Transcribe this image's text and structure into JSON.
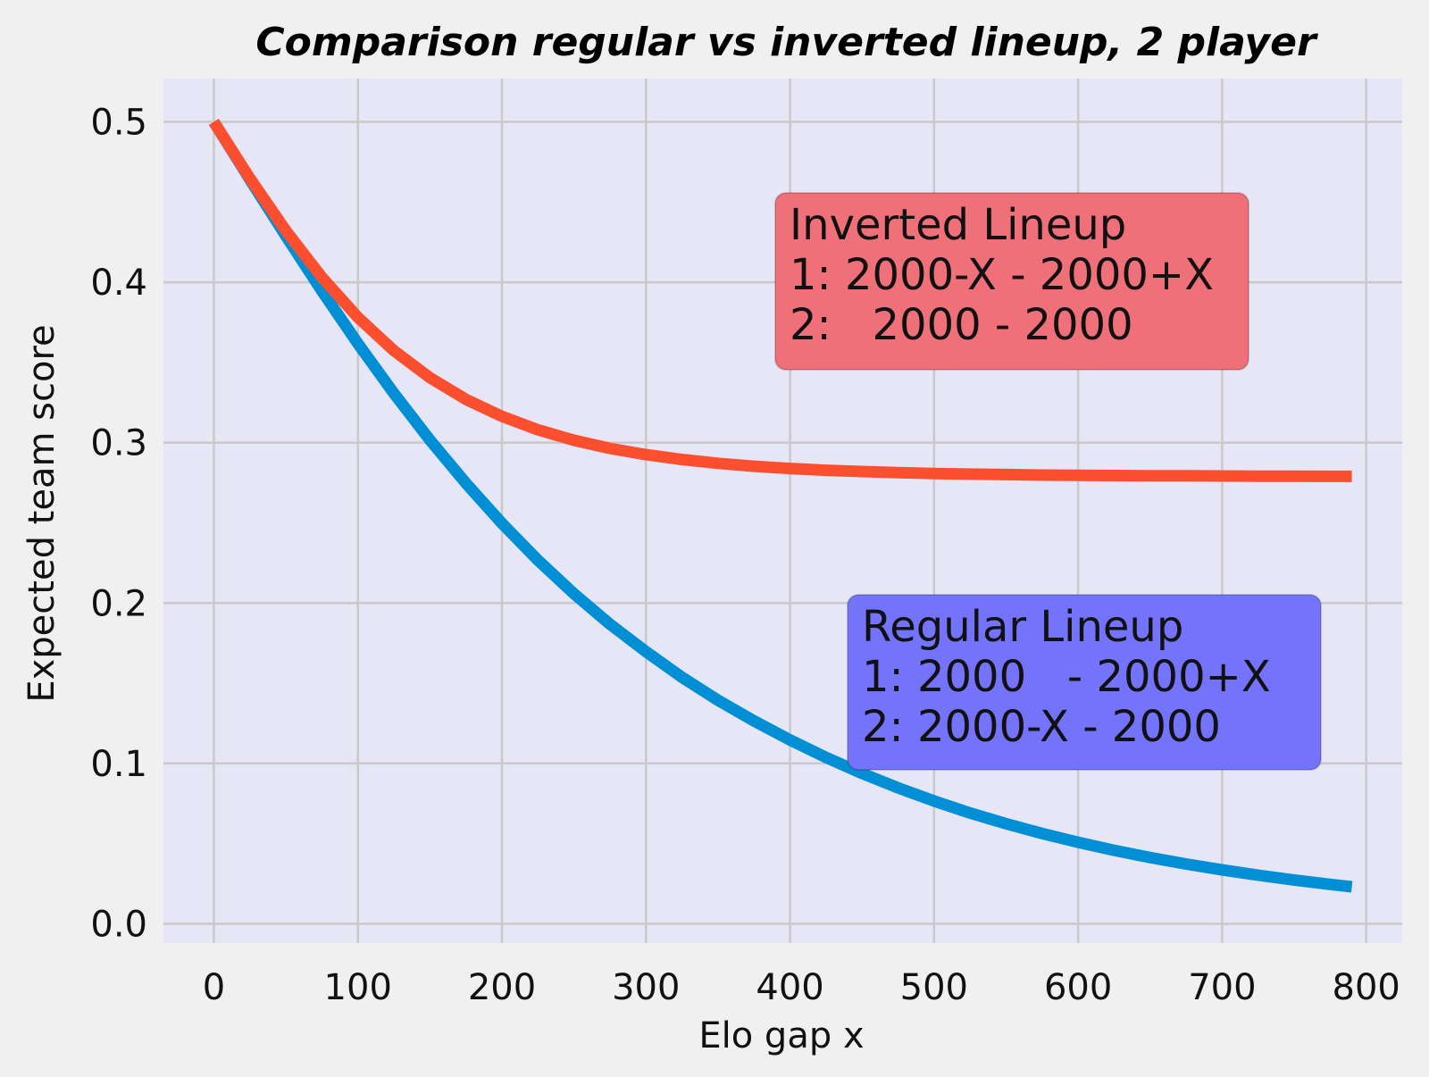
{
  "chart_data": {
    "type": "line",
    "title": "Comparison regular vs inverted lineup, 2 player",
    "xlabel": "Elo gap x",
    "ylabel": "Expected team score",
    "xlim": [
      -35,
      825
    ],
    "ylim": [
      -0.012,
      0.527
    ],
    "xticks": [
      0,
      100,
      200,
      300,
      400,
      500,
      600,
      700,
      800
    ],
    "yticks": [
      0.0,
      0.1,
      0.2,
      0.3,
      0.4,
      0.5
    ],
    "xtick_labels": [
      "0",
      "100",
      "200",
      "300",
      "400",
      "500",
      "600",
      "700",
      "800"
    ],
    "ytick_labels": [
      "0.0",
      "0.1",
      "0.2",
      "0.3",
      "0.4",
      "0.5"
    ],
    "grid": true,
    "background_color": "#e6e6f7",
    "grid_color": "#c9c9c9",
    "x": [
      0,
      25,
      50,
      75,
      100,
      125,
      150,
      175,
      200,
      225,
      250,
      275,
      300,
      325,
      350,
      375,
      400,
      425,
      450,
      475,
      500,
      525,
      550,
      575,
      600,
      625,
      650,
      675,
      700,
      725,
      750,
      775,
      790
    ],
    "series": [
      {
        "color": "#008fd5",
        "values": [
          0.5,
          0.4641,
          0.4289,
          0.3946,
          0.3618,
          0.3308,
          0.3016,
          0.2747,
          0.2497,
          0.2267,
          0.2058,
          0.1868,
          0.1697,
          0.1537,
          0.1394,
          0.1265,
          0.1146,
          0.1037,
          0.0938,
          0.0848,
          0.0766,
          0.0691,
          0.0624,
          0.0563,
          0.0508,
          0.0458,
          0.0413,
          0.0373,
          0.0336,
          0.0303,
          0.0273,
          0.0246,
          0.0231
        ]
      },
      {
        "color": "#fc4f30",
        "values": [
          0.5,
          0.4648,
          0.4322,
          0.4031,
          0.3781,
          0.3574,
          0.3405,
          0.327,
          0.3164,
          0.308,
          0.3015,
          0.2964,
          0.2925,
          0.2895,
          0.2871,
          0.2853,
          0.2839,
          0.2828,
          0.282,
          0.2813,
          0.2808,
          0.2804,
          0.2801,
          0.2798,
          0.2796,
          0.2795,
          0.2794,
          0.2793,
          0.2792,
          0.2791,
          0.2791,
          0.279,
          0.279
        ]
      }
    ],
    "annotations": [
      {
        "lines": [
          "Inverted Lineup",
          "1: 2000-X - 2000+X",
          "2:   2000 - 2000"
        ],
        "box_color": "#f07079"
      },
      {
        "lines": [
          "Regular Lineup",
          "1: 2000   - 2000+X",
          "2: 2000-X - 2000"
        ],
        "box_color": "#7373fb"
      }
    ]
  }
}
